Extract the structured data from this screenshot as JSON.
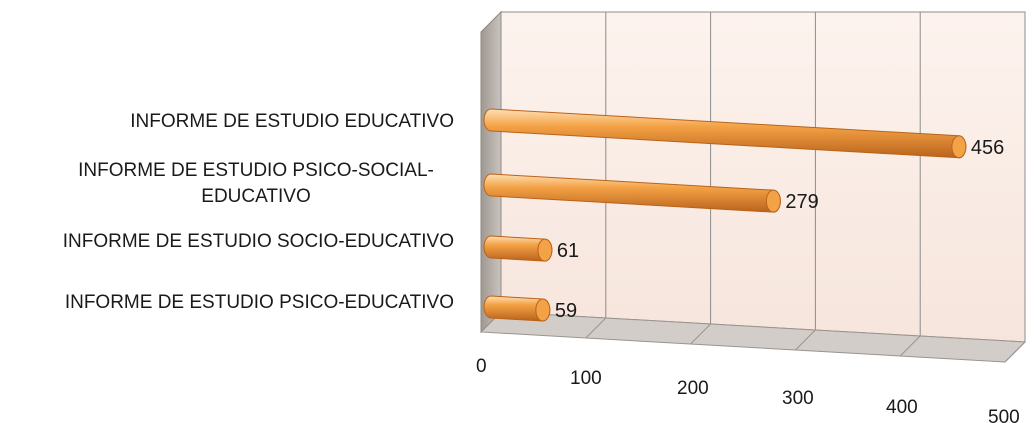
{
  "chart_data": {
    "type": "bar",
    "orientation": "horizontal",
    "style": "3d-cylinder",
    "categories": [
      "INFORME DE ESTUDIO EDUCATIVO",
      "INFORME DE ESTUDIO PSICO-SOCIAL-EDUCATIVO",
      "INFORME DE ESTUDIO SOCIO-EDUCATIVO",
      "INFORME DE ESTUDIO PSICO-EDUCATIVO"
    ],
    "category_label_lines": [
      [
        "INFORME DE ESTUDIO EDUCATIVO"
      ],
      [
        "INFORME DE ESTUDIO PSICO-SOCIAL-",
        "EDUCATIVO"
      ],
      [
        "INFORME DE ESTUDIO SOCIO-EDUCATIVO"
      ],
      [
        "INFORME DE ESTUDIO PSICO-EDUCATIVO"
      ]
    ],
    "values": [
      456,
      279,
      61,
      59
    ],
    "data_labels": [
      "456",
      "279",
      "61",
      "59"
    ],
    "xlim": [
      0,
      500
    ],
    "ticks": [
      0,
      100,
      200,
      300,
      400,
      500
    ],
    "tick_labels": [
      "0",
      "100",
      "200",
      "300",
      "400",
      "500"
    ],
    "grid": true,
    "legend": "none",
    "title": "",
    "xlabel": "",
    "ylabel": "",
    "colors": {
      "bar": "#f4a246",
      "bar_dark": "#b9631b",
      "bar_light": "#fde0b4",
      "wall": "#fdf1ea",
      "side_wall": "#b8b0aa",
      "floor": "#d2cdc8",
      "grid": "#8c8c8c"
    }
  }
}
